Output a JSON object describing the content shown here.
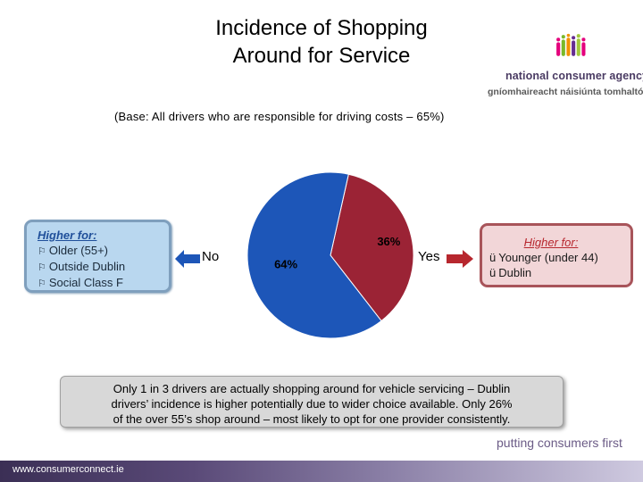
{
  "title": {
    "line1": "Incidence of Shopping",
    "line2": "Around for Service"
  },
  "logo": {
    "line1": "national consumer agency",
    "line2": "gníomhaireacht náisiúnta tomhaltóirí"
  },
  "base_note": "(Base:  All drivers who are responsible for driving costs – 65%)",
  "left_box": {
    "heading": "Higher for:",
    "items": [
      "Older (55+)",
      "Outside Dublin",
      "Social Class F"
    ],
    "bullet": "⚐"
  },
  "right_box": {
    "heading": "Higher for:",
    "items": [
      "Younger (under 44)",
      "Dublin"
    ],
    "bullet": "ü"
  },
  "label_no": "No",
  "label_yes": "Yes",
  "chart_data": {
    "type": "pie",
    "slices": [
      {
        "label": "Yes",
        "value": 36,
        "display": "36%",
        "color": "#9b2335"
      },
      {
        "label": "No",
        "value": 64,
        "display": "64%",
        "color": "#1d56b8"
      }
    ]
  },
  "summary": {
    "line1": "Only 1 in 3 drivers are actually shopping around for vehicle servicing – Dublin",
    "line2": "drivers’ incidence is higher potentially due to wider choice available.  Only 26%",
    "line3": "of the over 55’s shop around – most likely to opt for one provider consistently."
  },
  "tagline": "putting consumers first",
  "footer": "www.consumerconnect.ie"
}
